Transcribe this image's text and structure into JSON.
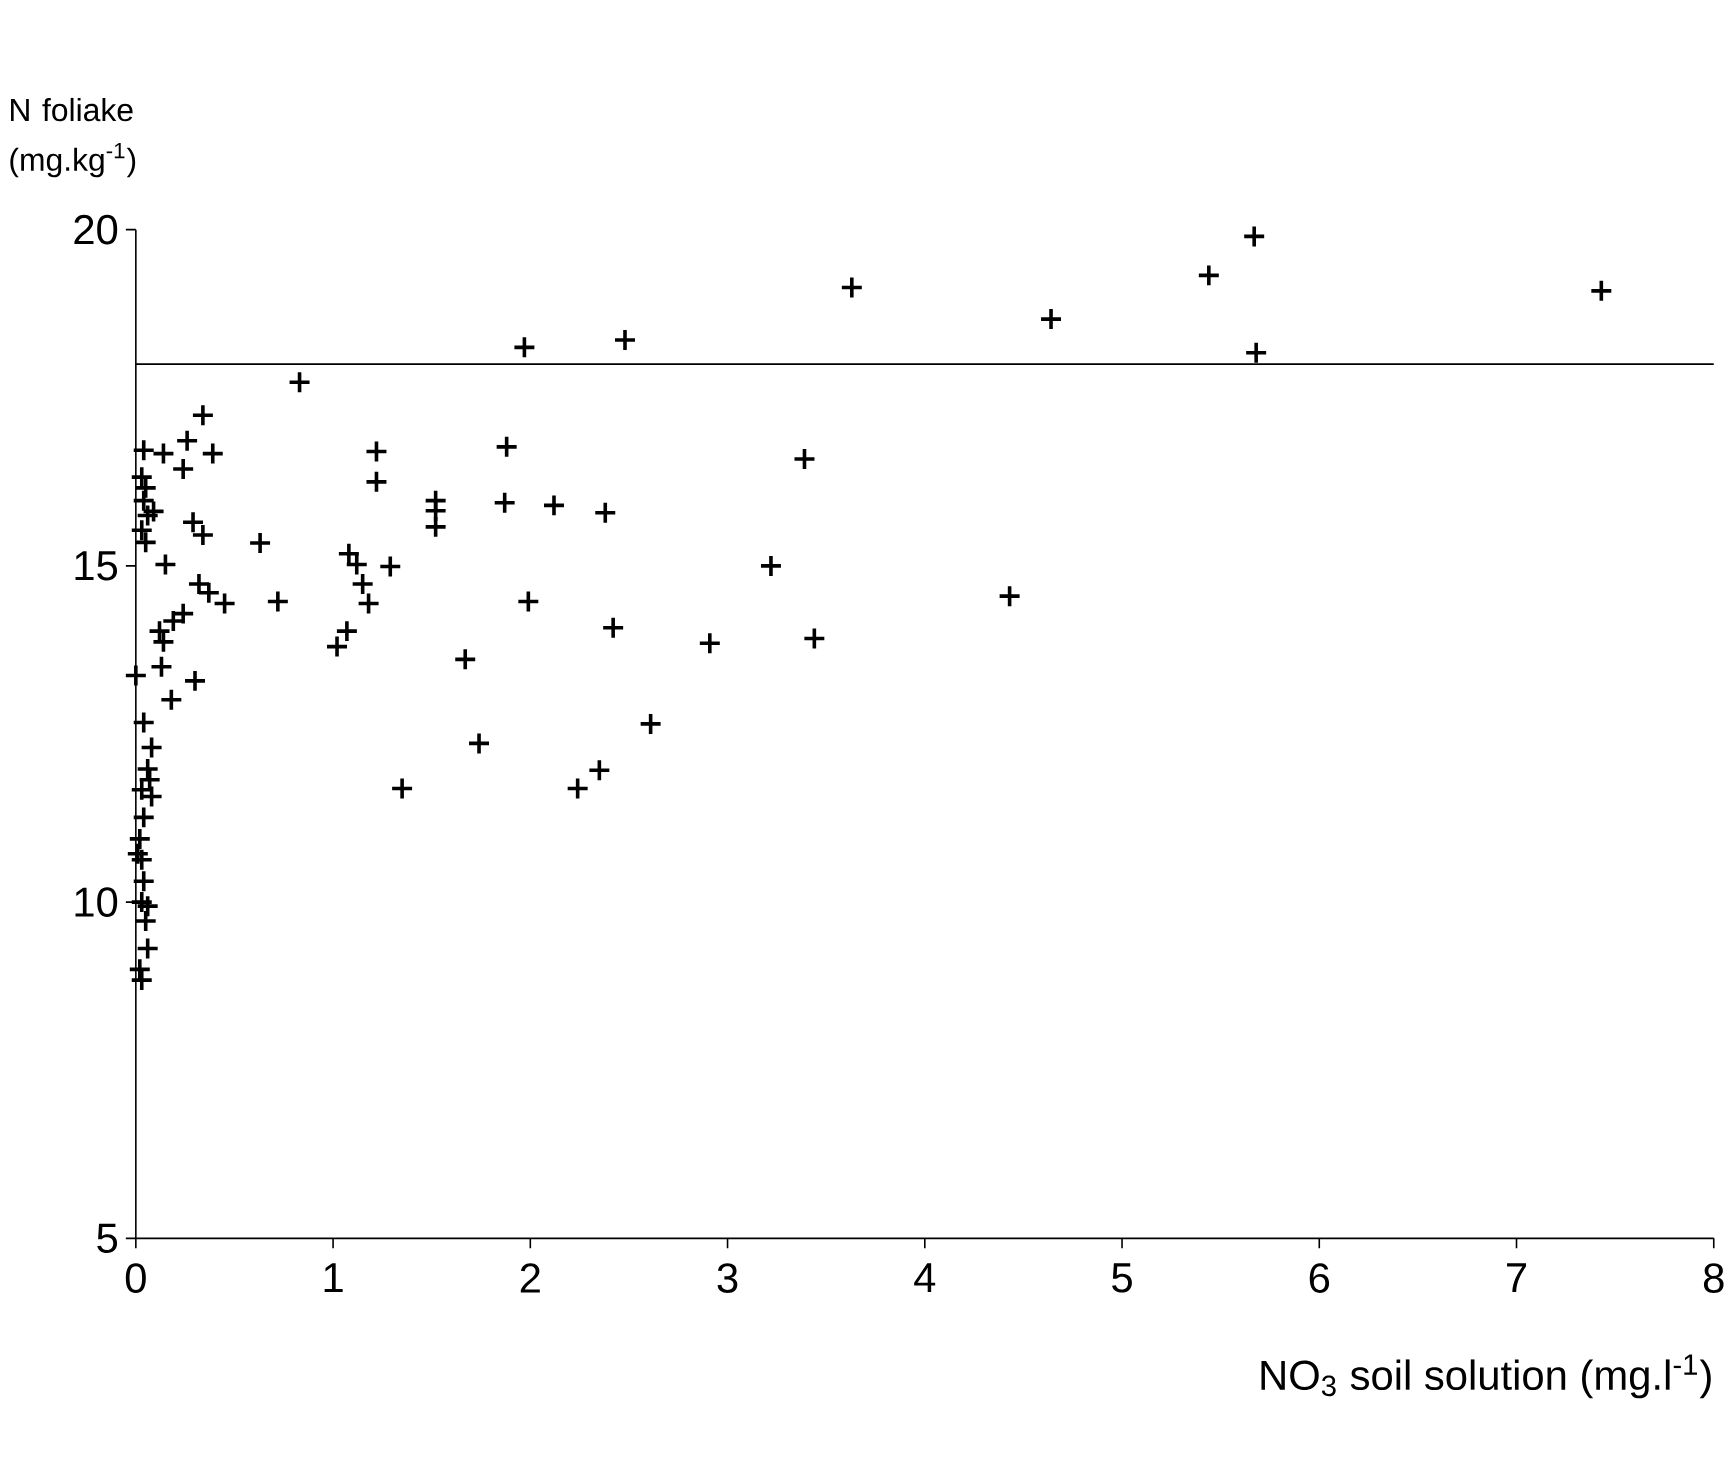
{
  "chart_data": {
    "type": "scatter",
    "xlabel": "NO$_{3}$ soil solution (mg.l$^{-1}$)",
    "ylabel": "N foliake (mg.kg$^{-1}$)",
    "xlim": [
      0,
      8
    ],
    "ylim": [
      5,
      20
    ],
    "xticks": [
      0,
      1,
      2,
      3,
      4,
      5,
      6,
      7,
      8
    ],
    "yticks": [
      5,
      10,
      15,
      20
    ],
    "marker": "cross",
    "grid": false,
    "ref_lines": [
      {
        "axis": "y",
        "value": 18,
        "color": "#000000"
      }
    ],
    "series": [
      {
        "color": "#000000",
        "x": [
          1.97,
          2.48,
          3.63,
          4.64,
          5.44,
          5.67,
          5.68,
          7.43,
          3.39,
          3.22,
          4.43,
          3.44,
          2.91,
          1.88,
          1.52,
          1.52,
          1.52,
          1.87,
          2.12,
          2.38,
          1.99,
          2.42,
          1.67,
          1.74,
          2.61,
          2.35,
          2.24,
          1.35,
          0.83,
          0.34,
          0.26,
          0.39,
          0.24,
          0.14,
          0.04,
          0.03,
          0.05,
          0.04,
          0.06,
          0.03,
          0.05,
          0.09,
          1.22,
          1.22,
          0.29,
          0.34,
          0.63,
          0.15,
          1.08,
          1.12,
          1.29,
          1.15,
          1.18,
          0.32,
          0.37,
          0.45,
          0.72,
          1.07,
          1.02,
          0.24,
          0.19,
          0.12,
          0.14,
          0.13,
          0.0,
          0.3,
          0.18,
          0.04,
          0.08,
          0.06,
          0.03,
          0.07,
          0.08,
          0.04,
          0.02,
          0.03,
          0.01,
          0.04,
          0.03,
          0.06,
          0.05,
          0.06,
          0.03,
          0.02
        ],
        "values": [
          18.25,
          18.36,
          19.14,
          18.67,
          19.32,
          19.9,
          18.17,
          19.09,
          16.59,
          15.0,
          14.55,
          13.92,
          13.85,
          16.77,
          15.97,
          15.82,
          15.58,
          15.94,
          15.9,
          15.79,
          14.47,
          14.08,
          13.61,
          12.36,
          12.65,
          11.96,
          11.69,
          11.69,
          17.73,
          17.24,
          16.86,
          16.67,
          16.44,
          16.67,
          16.72,
          16.32,
          16.16,
          15.97,
          15.75,
          15.53,
          15.35,
          15.81,
          16.7,
          16.25,
          15.65,
          15.46,
          15.34,
          15.02,
          15.18,
          15.02,
          14.99,
          14.73,
          14.44,
          14.73,
          14.6,
          14.44,
          14.47,
          14.03,
          13.8,
          14.29,
          14.18,
          14.03,
          13.87,
          13.5,
          13.37,
          13.29,
          13.01,
          12.67,
          12.3,
          11.98,
          11.67,
          11.82,
          11.57,
          11.26,
          10.94,
          10.63,
          10.72,
          10.31,
          10.0,
          9.94,
          9.72,
          9.31,
          8.84,
          9.0
        ]
      }
    ]
  }
}
